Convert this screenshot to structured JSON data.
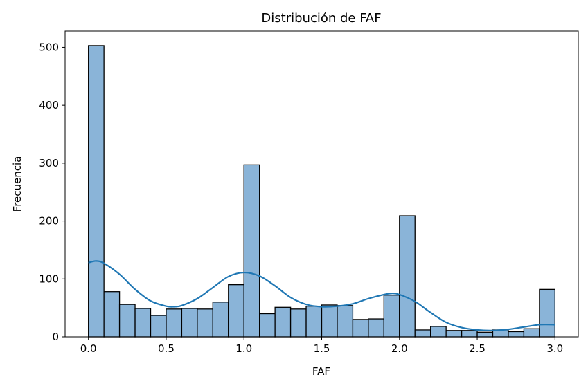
{
  "chart_data": {
    "type": "bar",
    "title": "Distribución de FAF",
    "xlabel": "FAF",
    "ylabel": "Frecuencia",
    "xlim": [
      -0.15,
      3.15
    ],
    "ylim": [
      0,
      528
    ],
    "bin_width": 0.1,
    "bins_x_start": [
      0.0,
      0.1,
      0.2,
      0.3,
      0.4,
      0.5,
      0.6,
      0.7,
      0.8,
      0.9,
      1.0,
      1.1,
      1.2,
      1.3,
      1.4,
      1.5,
      1.6,
      1.7,
      1.8,
      1.9,
      2.0,
      2.1,
      2.2,
      2.3,
      2.4,
      2.5,
      2.6,
      2.7,
      2.8,
      2.9
    ],
    "values": [
      503,
      78,
      56,
      49,
      37,
      48,
      49,
      48,
      60,
      90,
      297,
      40,
      51,
      48,
      53,
      55,
      54,
      30,
      31,
      72,
      209,
      12,
      18,
      11,
      11,
      8,
      12,
      9,
      14,
      82
    ],
    "kde": {
      "x": [
        0.0,
        0.05,
        0.1,
        0.2,
        0.3,
        0.4,
        0.5,
        0.55,
        0.6,
        0.7,
        0.8,
        0.9,
        1.0,
        1.1,
        1.2,
        1.3,
        1.4,
        1.5,
        1.6,
        1.7,
        1.8,
        1.9,
        1.95,
        2.0,
        2.1,
        2.2,
        2.3,
        2.4,
        2.5,
        2.6,
        2.7,
        2.8,
        2.9,
        3.0
      ],
      "y": [
        128,
        131,
        127,
        108,
        82,
        62,
        53,
        52,
        54,
        66,
        85,
        104,
        111,
        105,
        88,
        68,
        56,
        52,
        53,
        57,
        66,
        73,
        75,
        73,
        61,
        42,
        25,
        16,
        12,
        11,
        13,
        17,
        21,
        21
      ]
    },
    "xticks": [
      0.0,
      0.5,
      1.0,
      1.5,
      2.0,
      2.5,
      3.0
    ],
    "xtick_labels": [
      "0.0",
      "0.5",
      "1.0",
      "1.5",
      "2.0",
      "2.5",
      "3.0"
    ],
    "yticks": [
      0,
      100,
      200,
      300,
      400,
      500
    ],
    "ytick_labels": [
      "0",
      "100",
      "200",
      "300",
      "400",
      "500"
    ],
    "bar_color": "#8ab4d8",
    "line_color": "#1f77b4",
    "grid": false,
    "legend": "none"
  }
}
